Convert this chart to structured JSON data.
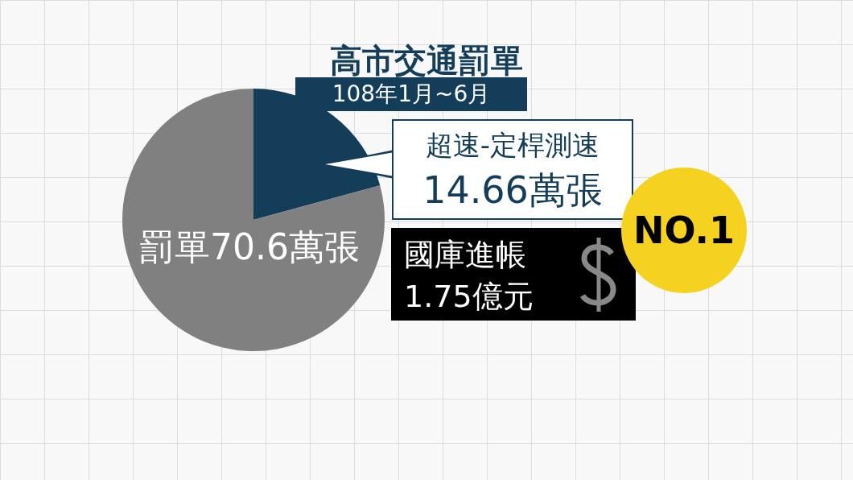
{
  "chart_data": {
    "type": "pie",
    "title": "高市交通罰單",
    "subtitle": "108年1月~6月",
    "categories": [
      "超速-定桿測速",
      null
    ],
    "values": [
      14.66,
      55.94
    ],
    "value_labels": [
      "14.66萬張",
      null
    ],
    "colors": [
      "#143d59",
      "#808080"
    ],
    "legend": false,
    "annotations": [
      "罰單70.6萬張",
      "國庫進帳",
      "1.75億元",
      "NO.1"
    ]
  }
}
